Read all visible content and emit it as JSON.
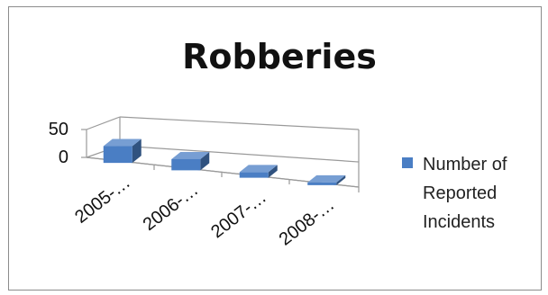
{
  "chart_data": {
    "type": "bar",
    "title": "Robberies",
    "categories": [
      "2005-…",
      "2006-…",
      "2007-…",
      "2008-…"
    ],
    "series": [
      {
        "name": "Number of Reported Incidents",
        "values": [
          30,
          20,
          10,
          3
        ],
        "color": "#4a7ec4"
      }
    ],
    "xlabel": "",
    "ylabel": "",
    "yticks": [
      0,
      50
    ],
    "ylim": [
      0,
      50
    ],
    "grid": true,
    "legend_position": "right",
    "legend_lines": [
      "Number of",
      "Reported",
      "Incidents"
    ]
  }
}
